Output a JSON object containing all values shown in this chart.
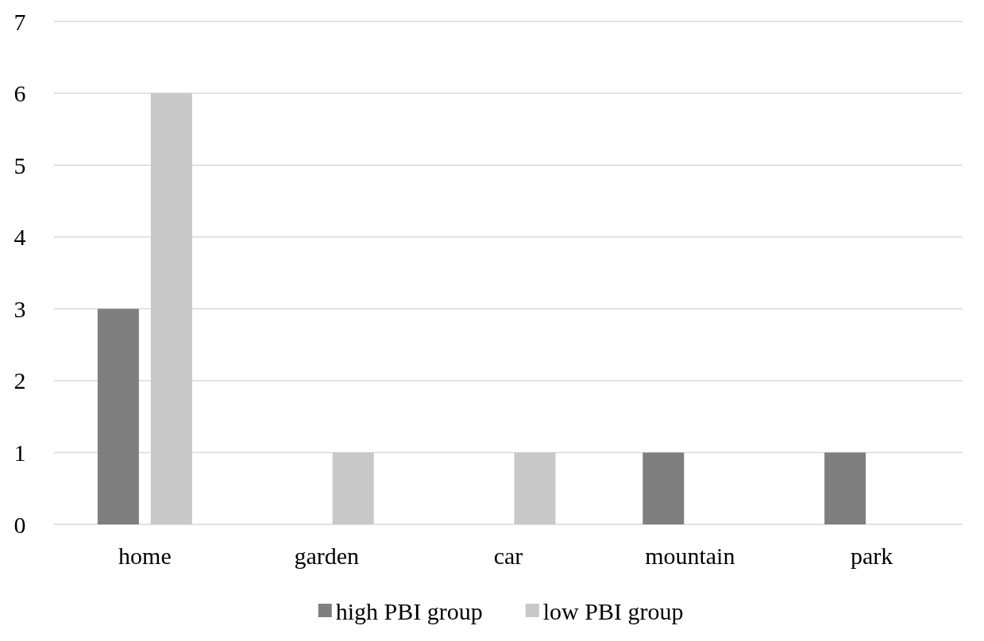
{
  "chart_data": {
    "type": "bar",
    "categories": [
      "home",
      "garden",
      "car",
      "mountain",
      "park"
    ],
    "series": [
      {
        "name": "high PBI group",
        "color": "#7f7f7f",
        "values": [
          3,
          0,
          0,
          1,
          1
        ]
      },
      {
        "name": "low PBI group",
        "color": "#c8c8c8",
        "values": [
          6,
          1,
          1,
          0,
          0
        ]
      }
    ],
    "ylim": [
      0,
      7
    ],
    "yticks": [
      0,
      1,
      2,
      3,
      4,
      5,
      6,
      7
    ],
    "grid": "y",
    "legend": "bottom"
  }
}
